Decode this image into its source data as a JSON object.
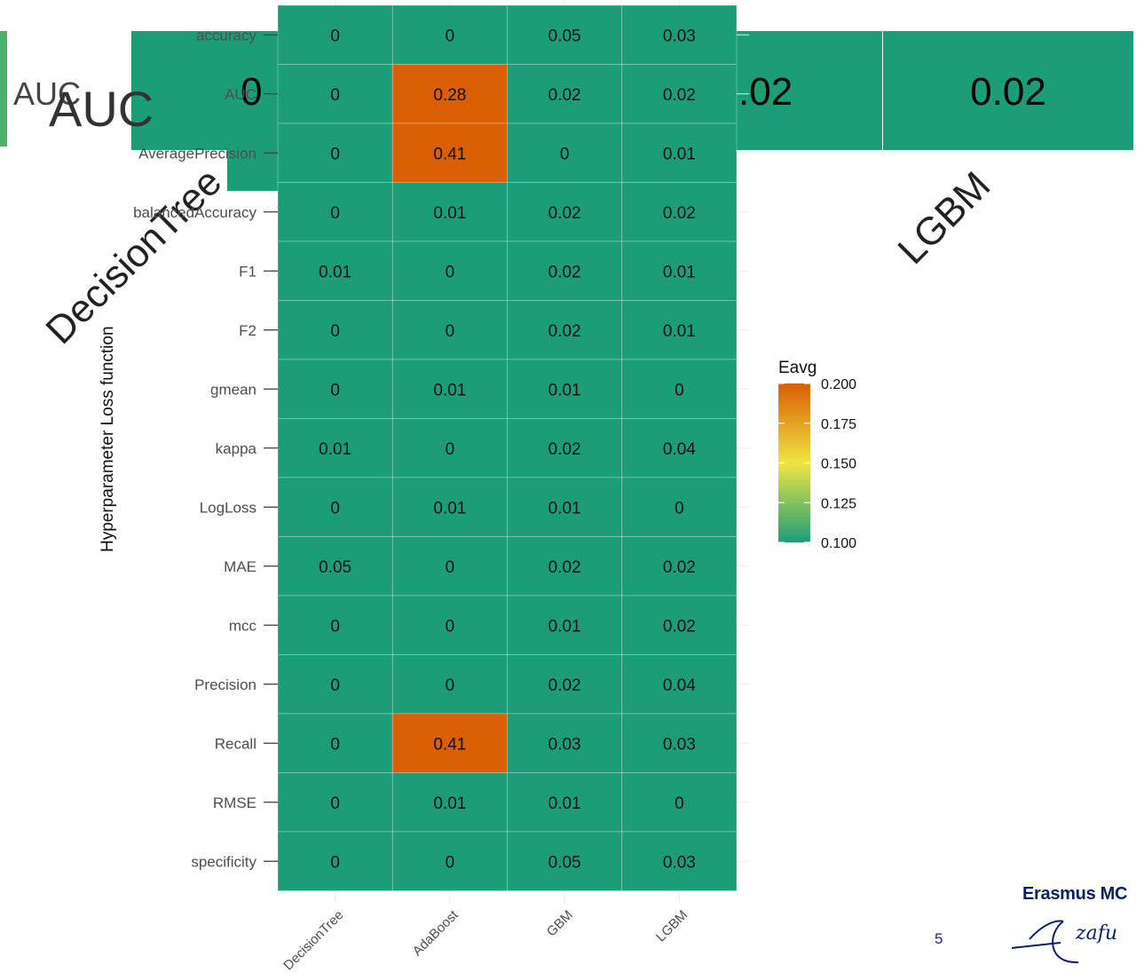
{
  "background": {
    "left_label_small": "AUC",
    "left_label_large": "AUC",
    "table_values": [
      "0",
      ".02",
      "0.02"
    ],
    "rotated_labels": [
      "DecisionTree",
      "LGBM"
    ],
    "accent_color": "#4caf6a"
  },
  "page_number": "5",
  "logo": {
    "text": "Erasmus MC",
    "script_text": "Ezafu"
  },
  "chart_data": {
    "type": "heatmap",
    "ylabel": "Hyperparameter Loss function",
    "xlabel": "",
    "x_categories": [
      "DecisionTree",
      "AdaBoost",
      "GBM",
      "LGBM"
    ],
    "y_categories": [
      "accuracy",
      "AUC",
      "AveragePrecision",
      "balancedAccuracy",
      "F1",
      "F2",
      "gmean",
      "kappa",
      "LogLoss",
      "MAE",
      "mcc",
      "Precision",
      "Recall",
      "RMSE",
      "specificity"
    ],
    "values": [
      [
        "0",
        "0",
        "0.05",
        "0.03"
      ],
      [
        "0",
        "0.28",
        "0.02",
        "0.02"
      ],
      [
        "0",
        "0.41",
        "0",
        "0.01"
      ],
      [
        "0",
        "0.01",
        "0.02",
        "0.02"
      ],
      [
        "0.01",
        "0",
        "0.02",
        "0.01"
      ],
      [
        "0",
        "0",
        "0.02",
        "0.01"
      ],
      [
        "0",
        "0.01",
        "0.01",
        "0"
      ],
      [
        "0.01",
        "0",
        "0.02",
        "0.04"
      ],
      [
        "0",
        "0.01",
        "0.01",
        "0"
      ],
      [
        "0.05",
        "0",
        "0.02",
        "0.02"
      ],
      [
        "0",
        "0",
        "0.01",
        "0.02"
      ],
      [
        "0",
        "0",
        "0.02",
        "0.04"
      ],
      [
        "0",
        "0.41",
        "0.03",
        "0.03"
      ],
      [
        "0",
        "0.01",
        "0.01",
        "0"
      ],
      [
        "0",
        "0",
        "0.05",
        "0.03"
      ]
    ],
    "legend": {
      "title": "Eavg",
      "ticks": [
        "0.200",
        "0.175",
        "0.150",
        "0.125",
        "0.100"
      ],
      "min": 0.1,
      "max": 0.2,
      "colors": [
        "#1b9e77",
        "#f0e442",
        "#d95f02"
      ],
      "placement": "right"
    },
    "grid": true
  }
}
